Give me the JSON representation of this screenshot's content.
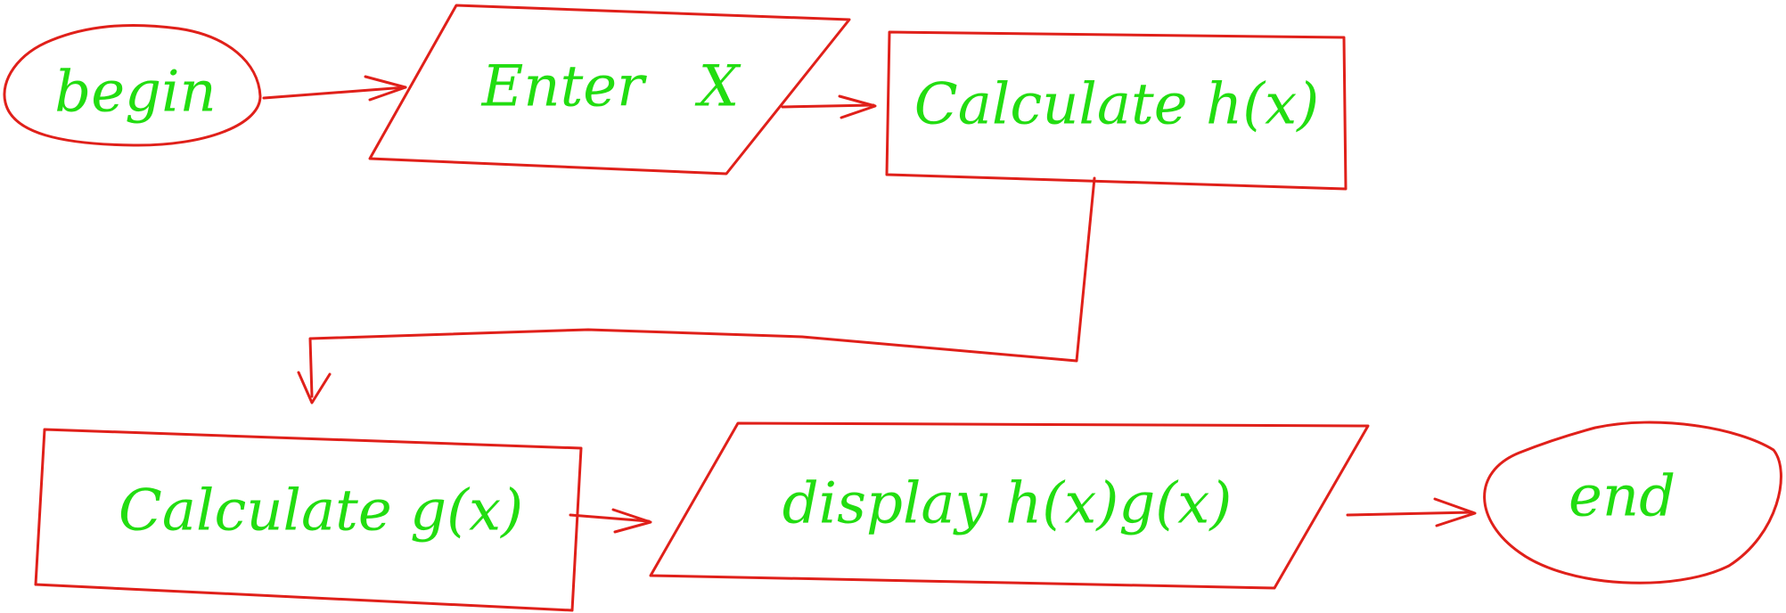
{
  "colors": {
    "stroke": "#e0201a",
    "text": "#22dd11"
  },
  "nodes": {
    "begin": "begin",
    "enter_x": "Enter   X",
    "calc_h": "Calculate h(x)",
    "calc_g": "Calculate g(x)",
    "display": "display h(x)g(x)",
    "end": "end"
  }
}
